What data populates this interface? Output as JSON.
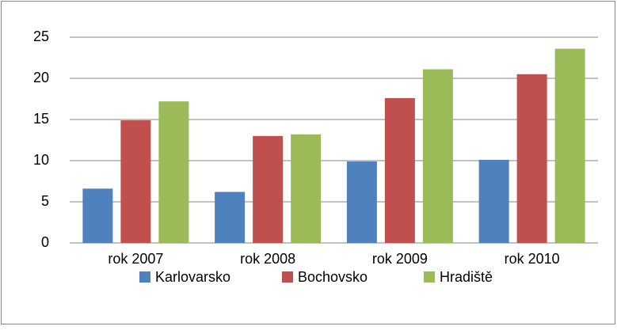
{
  "chart_data": {
    "type": "bar",
    "categories": [
      "rok 2007",
      "rok 2008",
      "rok 2009",
      "rok 2010"
    ],
    "series": [
      {
        "name": "Karlovarsko",
        "color": "#4f81bd",
        "values": [
          6.6,
          6.2,
          9.9,
          10.1
        ]
      },
      {
        "name": "Bochovsko",
        "color": "#c0504d",
        "values": [
          14.9,
          13.0,
          17.6,
          20.5
        ]
      },
      {
        "name": "Hradiště",
        "color": "#9bbb59",
        "values": [
          17.2,
          13.2,
          21.1,
          23.6
        ]
      }
    ],
    "ylim": [
      0,
      25
    ],
    "yticks": [
      0,
      5,
      10,
      15,
      20,
      25
    ],
    "grid": true,
    "legend": "bottom"
  }
}
